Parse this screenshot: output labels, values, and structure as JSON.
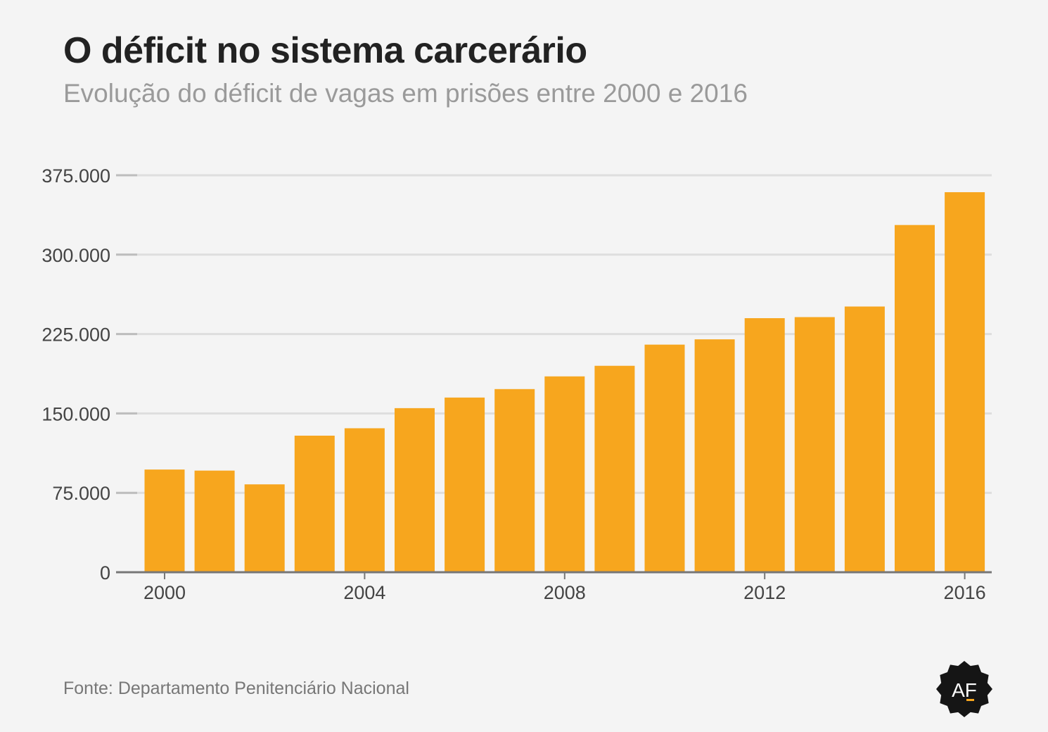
{
  "title": "O déficit no sistema carcerário",
  "subtitle": "Evolução do déficit de vagas em prisões entre 2000 e 2016",
  "source": "Fonte: Departamento Penitenciário Nacional",
  "logo": {
    "text": "AF",
    "icon": "af-seal-logo"
  },
  "colors": {
    "bar": "#f7a61e",
    "grid": "#dedede",
    "axis": "#777777",
    "background": "#f4f4f4",
    "text": "#444444"
  },
  "chart_data": {
    "type": "bar",
    "categories": [
      "2000",
      "2001",
      "2002",
      "2003",
      "2004",
      "2005",
      "2006",
      "2007",
      "2008",
      "2009",
      "2010",
      "2011",
      "2012",
      "2013",
      "2014",
      "2015",
      "2016"
    ],
    "values": [
      97000,
      96000,
      83000,
      129000,
      136000,
      155000,
      165000,
      173000,
      185000,
      195000,
      215000,
      220000,
      240000,
      241000,
      251000,
      328000,
      359000
    ],
    "ylim": [
      0,
      375000
    ],
    "yticks": [
      {
        "value": 0,
        "label": "0"
      },
      {
        "value": 75000,
        "label": "75.000"
      },
      {
        "value": 150000,
        "label": "150.000"
      },
      {
        "value": 225000,
        "label": "225.000"
      },
      {
        "value": 300000,
        "label": "300.000"
      },
      {
        "value": 375000,
        "label": "375.000"
      }
    ],
    "xticks": [
      "2000",
      "2004",
      "2008",
      "2012",
      "2016"
    ],
    "grid": true,
    "legend": "none"
  }
}
